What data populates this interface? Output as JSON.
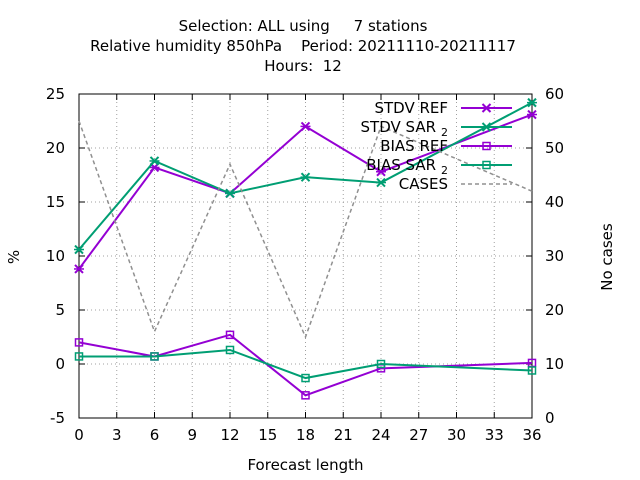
{
  "title": {
    "line1": "Selection: ALL using     7 stations",
    "line2": "Relative humidity 850hPa    Period: 20211110-20211117",
    "line3": "Hours:  12"
  },
  "chart_data": {
    "type": "line",
    "xlabel": "Forecast length",
    "ylabel": "%",
    "y2label": "No cases",
    "xlim": [
      0,
      36
    ],
    "ylim": [
      -5,
      25
    ],
    "y2lim": [
      0,
      60
    ],
    "xticks": [
      0,
      3,
      6,
      9,
      12,
      15,
      18,
      21,
      24,
      27,
      30,
      33,
      36
    ],
    "yticks": [
      -5,
      0,
      5,
      10,
      15,
      20,
      25
    ],
    "y2ticks": [
      0,
      10,
      20,
      30,
      40,
      50,
      60
    ],
    "grid": true,
    "legend_position": "top-right",
    "x": [
      0,
      6,
      12,
      18,
      24,
      36
    ],
    "series": [
      {
        "name": "STDV REF",
        "legend_main": "STDV REF",
        "legend_sub": "",
        "values": [
          8.8,
          18.2,
          15.8,
          22.0,
          17.8,
          23.1
        ],
        "color": "#9400d3",
        "marker": "x",
        "dash": false,
        "axis": "y1"
      },
      {
        "name": "STDV SAR 2",
        "legend_main": "STDV SAR",
        "legend_sub": "2",
        "values": [
          10.6,
          18.8,
          15.8,
          17.3,
          16.8,
          24.2
        ],
        "color": "#009e73",
        "marker": "x",
        "dash": false,
        "axis": "y1"
      },
      {
        "name": "BIAS REF",
        "legend_main": "BIAS REF",
        "legend_sub": "",
        "values": [
          2.0,
          0.7,
          2.7,
          -2.9,
          -0.4,
          0.1
        ],
        "color": "#9400d3",
        "marker": "square",
        "dash": false,
        "axis": "y1"
      },
      {
        "name": "BIAS SAR 2",
        "legend_main": "BIAS SAR",
        "legend_sub": "2",
        "values": [
          0.7,
          0.7,
          1.3,
          -1.3,
          0.0,
          -0.6
        ],
        "color": "#009e73",
        "marker": "square",
        "dash": false,
        "axis": "y1"
      },
      {
        "name": "CASES",
        "legend_main": "CASES",
        "legend_sub": "",
        "values": [
          55,
          16,
          47,
          15,
          54,
          42
        ],
        "color": "#909090",
        "marker": "none",
        "dash": true,
        "axis": "y2"
      }
    ]
  }
}
